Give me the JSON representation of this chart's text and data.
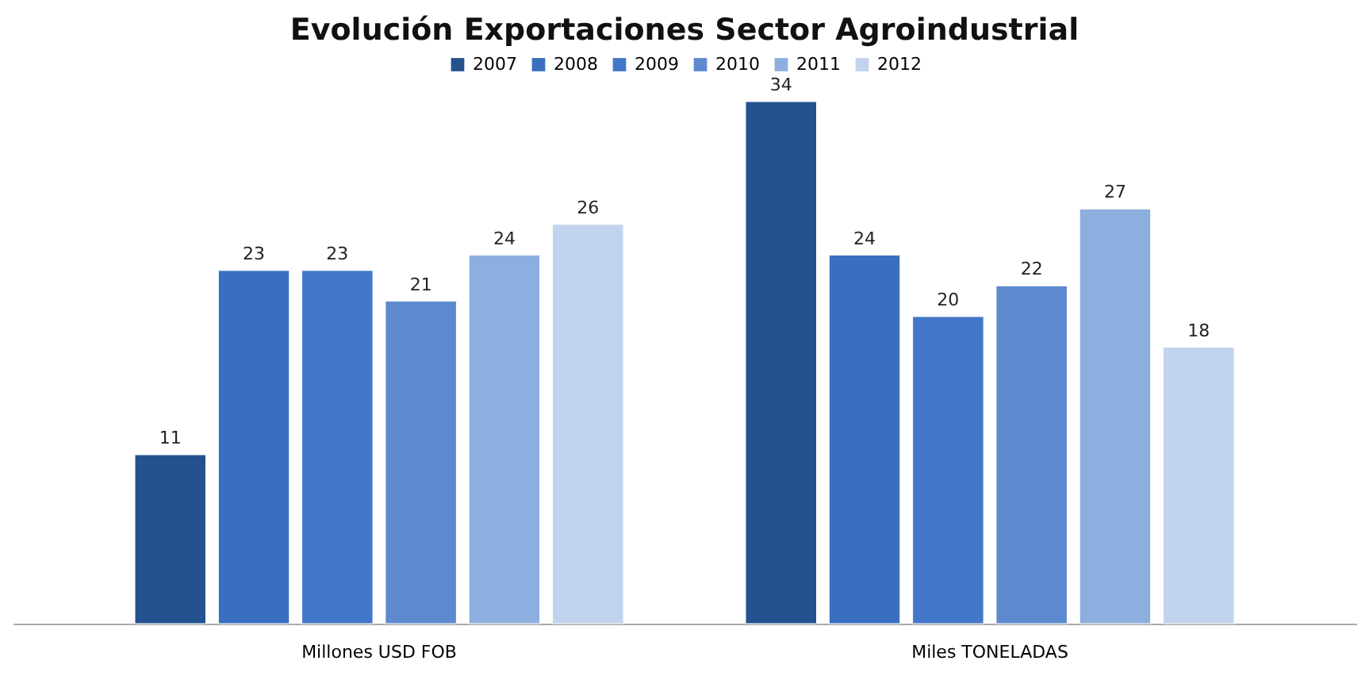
{
  "chart_data": {
    "type": "bar",
    "title": "Evolución Exportaciones Sector Agroindustrial",
    "categories": [
      "Millones USD FOB",
      "Miles TONELADAS"
    ],
    "series": [
      {
        "name": "2007",
        "color": "#23528f",
        "values": [
          11,
          34
        ]
      },
      {
        "name": "2008",
        "color": "#3a6fbf",
        "values": [
          23,
          24
        ]
      },
      {
        "name": "2009",
        "color": "#4377c9",
        "values": [
          23,
          20
        ]
      },
      {
        "name": "2010",
        "color": "#5d89cf",
        "values": [
          21,
          22
        ]
      },
      {
        "name": "2011",
        "color": "#8dafdf",
        "values": [
          24,
          27
        ]
      },
      {
        "name": "2012",
        "color": "#c2d3ee",
        "values": [
          26,
          18
        ]
      }
    ],
    "tick_labels": "x",
    "data_labels": true,
    "legend": "top"
  }
}
